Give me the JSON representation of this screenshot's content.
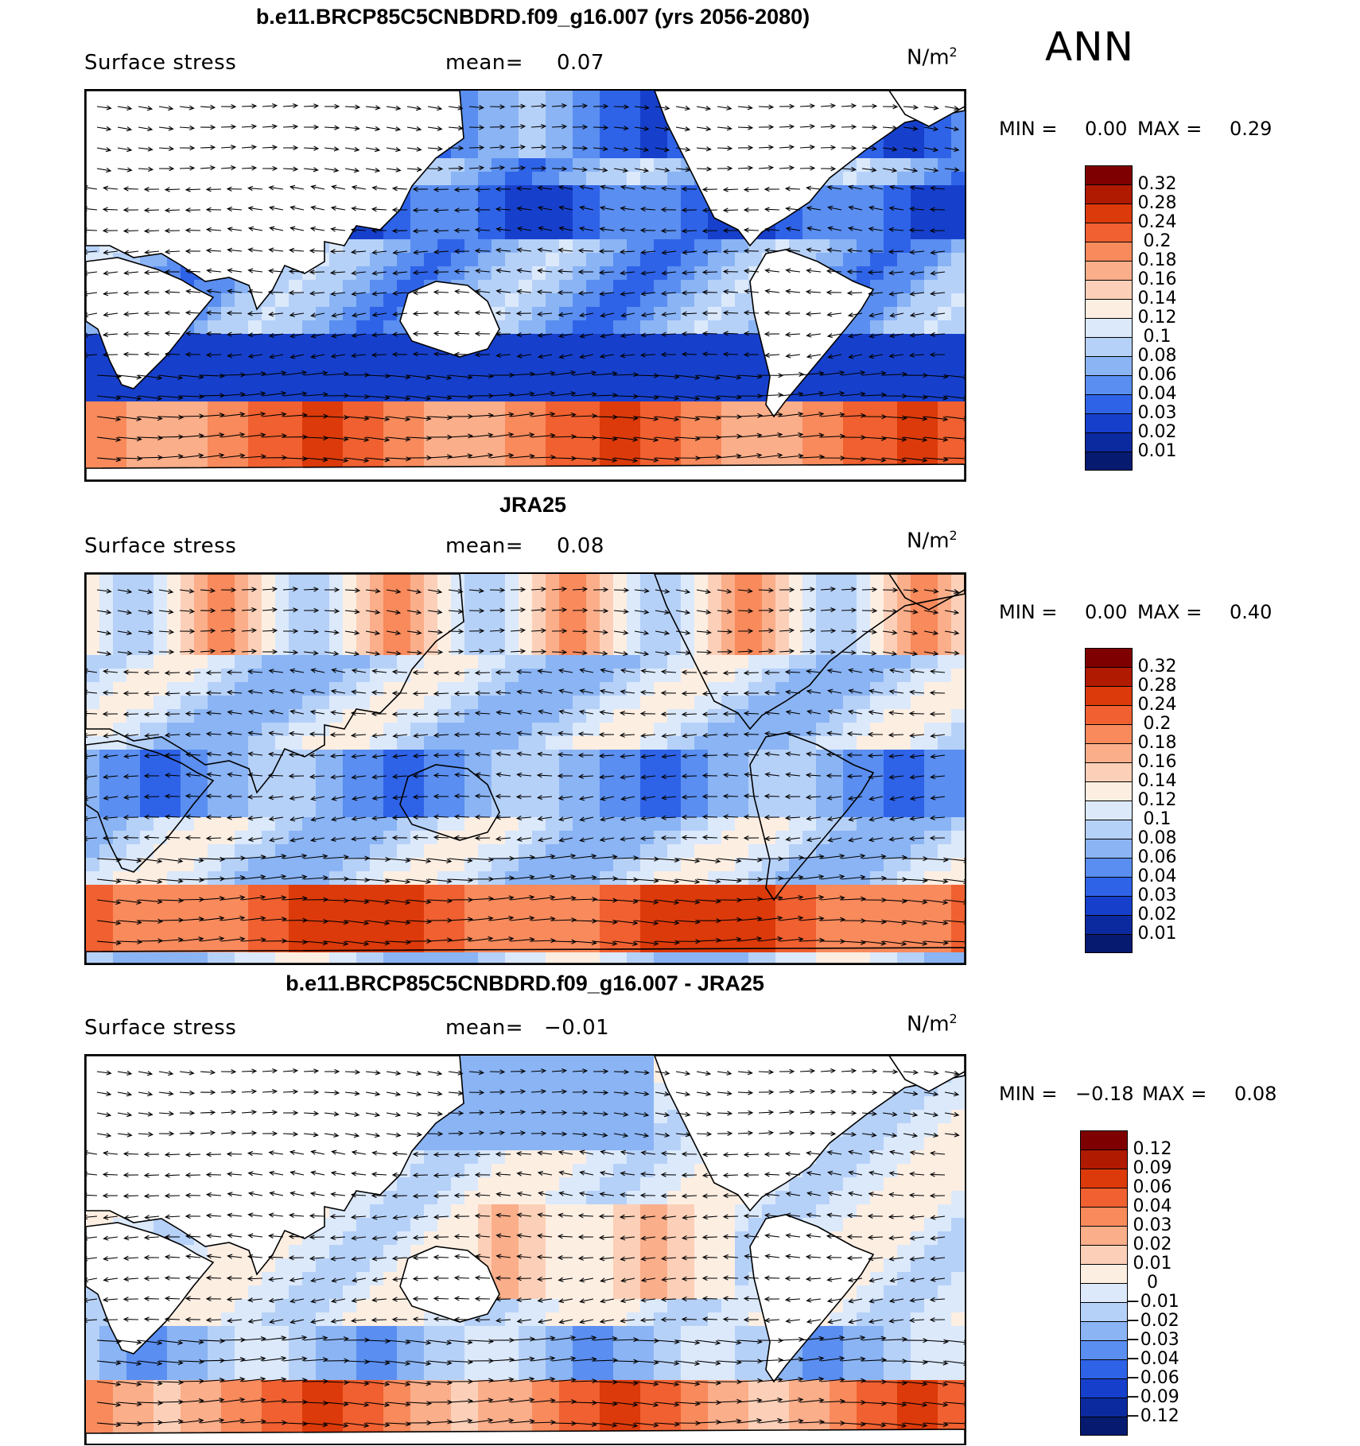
{
  "season": "ANN",
  "panels": [
    {
      "title": "b.e11.BRCP85C5CNBDRD.f09_g16.007 (yrs 2056-2080)",
      "variable": "Surface stress",
      "mean_label": "mean=",
      "mean_value": "0.07",
      "units_base": "N/m",
      "units_exp": "2",
      "min_label": "MIN =",
      "min_value": "0.00",
      "max_label": "MAX =",
      "max_value": "0.29",
      "colorbar_labels": [
        "0.32",
        "0.28",
        "0.24",
        "0.2",
        "0.18",
        "0.16",
        "0.14",
        "0.12",
        "0.1",
        "0.08",
        "0.06",
        "0.04",
        "0.03",
        "0.02",
        "0.01"
      ],
      "colorbar_colors": [
        "#7f0000",
        "#b01a00",
        "#dc3a0a",
        "#f06030",
        "#f88a5c",
        "#fbae8a",
        "#fcd0b8",
        "#fdeee2",
        "#dbe9fb",
        "#b6d1f8",
        "#8ab4f4",
        "#5a8ef0",
        "#2e63e8",
        "#1640cc",
        "#0c2aa0",
        "#061a70"
      ]
    },
    {
      "title": "JRA25",
      "variable": "Surface stress",
      "mean_label": "mean=",
      "mean_value": "0.08",
      "units_base": "N/m",
      "units_exp": "2",
      "min_label": "MIN =",
      "min_value": "0.00",
      "max_label": "MAX =",
      "max_value": "0.40",
      "colorbar_labels": [
        "0.32",
        "0.28",
        "0.24",
        "0.2",
        "0.18",
        "0.16",
        "0.14",
        "0.12",
        "0.1",
        "0.08",
        "0.06",
        "0.04",
        "0.03",
        "0.02",
        "0.01"
      ],
      "colorbar_colors": [
        "#7f0000",
        "#b01a00",
        "#dc3a0a",
        "#f06030",
        "#f88a5c",
        "#fbae8a",
        "#fcd0b8",
        "#fdeee2",
        "#dbe9fb",
        "#b6d1f8",
        "#8ab4f4",
        "#5a8ef0",
        "#2e63e8",
        "#1640cc",
        "#0c2aa0",
        "#061a70"
      ]
    },
    {
      "title": "b.e11.BRCP85C5CNBDRD.f09_g16.007 - JRA25",
      "variable": "Surface stress",
      "mean_label": "mean=",
      "mean_value": "−0.01",
      "units_base": "N/m",
      "units_exp": "2",
      "min_label": "MIN =",
      "min_value": "−0.18",
      "max_label": "MAX =",
      "max_value": "0.08",
      "colorbar_labels": [
        "0.12",
        "0.09",
        "0.06",
        "0.04",
        "0.03",
        "0.02",
        "0.01",
        "0",
        "−0.01",
        "−0.02",
        "−0.03",
        "−0.04",
        "−0.06",
        "−0.09",
        "−0.12"
      ],
      "colorbar_colors": [
        "#7f0000",
        "#b01a00",
        "#dc3a0a",
        "#f06030",
        "#f88a5c",
        "#fbae8a",
        "#fcd0b8",
        "#fdeee2",
        "#dbe9fb",
        "#b6d1f8",
        "#8ab4f4",
        "#5a8ef0",
        "#2e63e8",
        "#1640cc",
        "#0c2aa0",
        "#061a70"
      ]
    }
  ],
  "colors": {
    "land": "#ffffff",
    "coastline": "#000000",
    "vector": "#000000"
  }
}
